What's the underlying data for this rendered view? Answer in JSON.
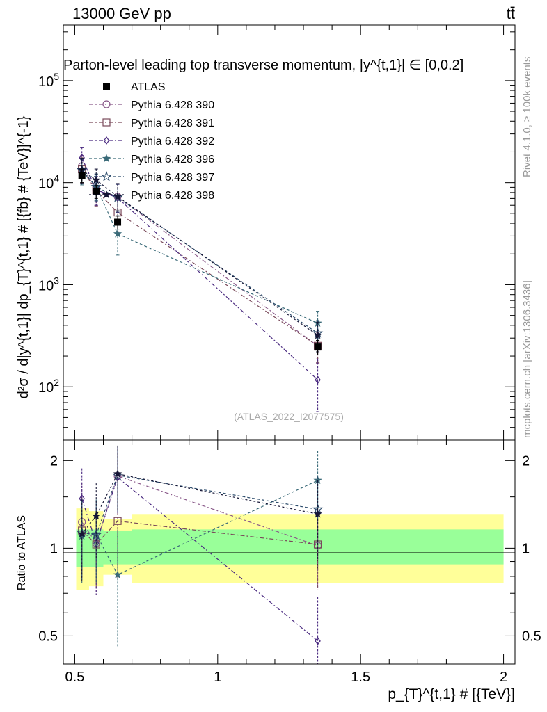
{
  "header": {
    "left": "13000 GeV pp",
    "right": "tt̄"
  },
  "side_labels": {
    "rivet": "Rivet 4.1.0, ≥ 100k events",
    "mcplots": "mcplots.cern.ch [arXiv:1306.3436]"
  },
  "colors": {
    "ATLAS": "#000000",
    "p390": "#8a5a8a",
    "p391": "#7a4a5a",
    "p392": "#4a2a80",
    "p396": "#3a6a78",
    "p397": "#2a4a6a",
    "p398": "#151535",
    "band_green": "#99ff99",
    "band_yellow": "#ffff99"
  },
  "chart_data": [
    {
      "type": "scatter",
      "panel": "main",
      "title": "Parton-level leading top transverse momentum, |y^{t,1}| ∈ [0,0.2]",
      "ylabel": "d²σ / d|y^{t,1}| dp_{T}^{t,1} # [{fb} # {TeV}]^{-1}",
      "xlabel": "p_{T}^{t,1} # [{TeV}]",
      "yscale": "log",
      "xlim": [
        0.46,
        2.04
      ],
      "ylim": [
        30,
        350000
      ],
      "y_ticks": [
        "10^2",
        "10^3",
        "10^4",
        "10^5"
      ],
      "x_ticks": [
        "0.5",
        "1",
        "1.5",
        "2"
      ],
      "watermark": "(ATLAS_2022_I2077575)",
      "x": [
        0.525,
        0.575,
        0.65,
        1.35
      ],
      "series": [
        {
          "name": "ATLAS",
          "key": "ATLAS",
          "marker": "square-filled",
          "values": [
            11800,
            8200,
            4100,
            245
          ],
          "err_lo": [
            1800,
            1200,
            600,
            40
          ],
          "err_hi": [
            1800,
            1200,
            600,
            40
          ]
        },
        {
          "name": "Pythia 6.428 390",
          "key": "p390",
          "marker": "circle-open",
          "values": [
            14500,
            8500,
            7300,
            250
          ],
          "err_lo": [
            3500,
            2500,
            2000,
            80
          ],
          "err_hi": [
            4000,
            3000,
            2500,
            90
          ]
        },
        {
          "name": "Pythia 6.428 391",
          "key": "p391",
          "marker": "square-open",
          "values": [
            13500,
            8400,
            5100,
            252
          ],
          "err_lo": [
            3500,
            2500,
            1800,
            80
          ],
          "err_hi": [
            4000,
            3000,
            2200,
            90
          ]
        },
        {
          "name": "Pythia 6.428 392",
          "key": "p392",
          "marker": "diamond-open",
          "values": [
            17500,
            8500,
            7100,
            117
          ],
          "err_lo": [
            4000,
            2500,
            2000,
            60
          ],
          "err_hi": [
            4500,
            3000,
            2500,
            70
          ]
        },
        {
          "name": "Pythia 6.428 396",
          "key": "p396",
          "marker": "star-filled",
          "values": [
            13000,
            9200,
            3150,
            420
          ],
          "err_lo": [
            3500,
            2500,
            1200,
            120
          ],
          "err_hi": [
            4000,
            3000,
            1600,
            130
          ]
        },
        {
          "name": "Pythia 6.428 397",
          "key": "p397",
          "marker": "star-open",
          "values": [
            13300,
            9100,
            7150,
            335
          ],
          "err_lo": [
            3500,
            2500,
            2000,
            100
          ],
          "err_hi": [
            4000,
            3000,
            2500,
            110
          ]
        },
        {
          "name": "Pythia 6.428 398",
          "key": "p398",
          "marker": "star-filled",
          "values": [
            13300,
            10600,
            7300,
            320
          ],
          "err_lo": [
            3500,
            2500,
            2000,
            100
          ],
          "err_hi": [
            4000,
            3000,
            2500,
            110
          ]
        }
      ]
    },
    {
      "type": "scatter",
      "panel": "ratio",
      "ylabel": "Ratio to ATLAS",
      "yscale": "log",
      "ylim": [
        0.4,
        2.35
      ],
      "y_ticks": [
        "0.5",
        "1",
        "2"
      ],
      "x": [
        0.525,
        0.575,
        0.65,
        1.35
      ],
      "band_edges": [
        0.5,
        0.55,
        0.6,
        0.7,
        2.0
      ],
      "band_green": [
        [
          0.86,
          1.16
        ],
        [
          0.86,
          1.16
        ],
        [
          0.88,
          1.15
        ],
        [
          0.88,
          1.16
        ]
      ],
      "band_yellow": [
        [
          0.72,
          1.37
        ],
        [
          0.74,
          1.34
        ],
        [
          0.81,
          1.26
        ],
        [
          0.76,
          1.31
        ]
      ],
      "series": [
        {
          "name": "Pythia 6.428 390",
          "key": "p390",
          "marker": "circle-open",
          "values": [
            1.23,
            1.04,
            1.77,
            1.02
          ],
          "err": [
            0.45,
            0.35,
            0.45,
            0.3
          ]
        },
        {
          "name": "Pythia 6.428 391",
          "key": "p391",
          "marker": "square-open",
          "values": [
            1.15,
            1.03,
            1.24,
            1.03
          ],
          "err": [
            0.35,
            0.3,
            0.45,
            0.3
          ]
        },
        {
          "name": "Pythia 6.428 392",
          "key": "p392",
          "marker": "diamond-open",
          "values": [
            1.48,
            1.04,
            1.75,
            0.48
          ],
          "err": [
            0.4,
            0.35,
            0.45,
            0.2
          ]
        },
        {
          "name": "Pythia 6.428 396",
          "key": "p396",
          "marker": "star-filled",
          "values": [
            1.1,
            1.12,
            0.81,
            1.71
          ],
          "err": [
            0.35,
            0.35,
            0.35,
            0.45
          ]
        },
        {
          "name": "Pythia 6.428 397",
          "key": "p397",
          "marker": "star-open",
          "values": [
            1.13,
            1.11,
            1.78,
            1.36
          ],
          "err": [
            0.35,
            0.35,
            0.45,
            0.4
          ]
        },
        {
          "name": "Pythia 6.428 398",
          "key": "p398",
          "marker": "star-filled",
          "values": [
            1.12,
            1.29,
            1.8,
            1.31
          ],
          "err": [
            0.35,
            0.38,
            0.45,
            0.4
          ]
        }
      ]
    }
  ]
}
